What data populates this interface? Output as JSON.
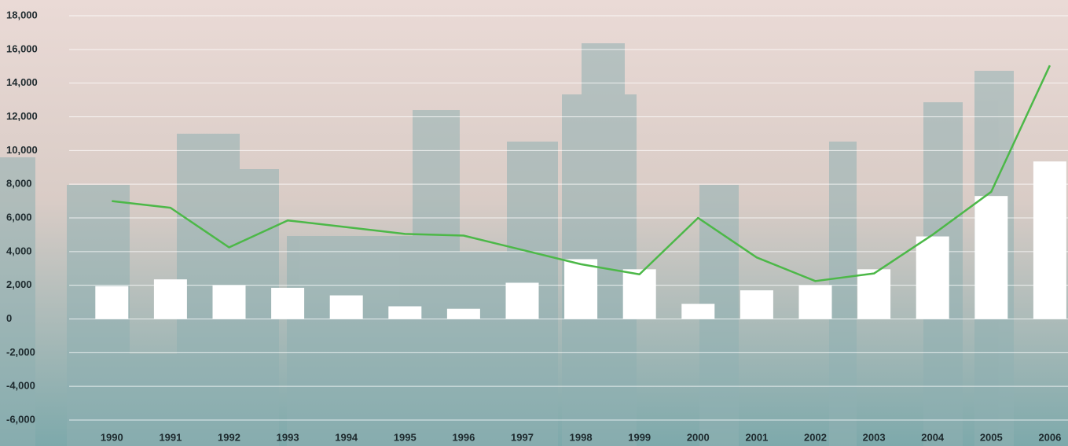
{
  "chart_data": {
    "type": "combo",
    "categories": [
      "1990",
      "1991",
      "1992",
      "1993",
      "1994",
      "1995",
      "1996",
      "1997",
      "1998",
      "1999",
      "2000",
      "2001",
      "2002",
      "2003",
      "2004",
      "2005",
      "2006"
    ],
    "series": [
      {
        "type": "bar",
        "color": "#ffffff",
        "values": [
          1950,
          2350,
          2000,
          1850,
          1400,
          750,
          600,
          2150,
          3550,
          2950,
          900,
          1700,
          2000,
          2950,
          4900,
          7300,
          9350
        ]
      },
      {
        "type": "line",
        "color": "#4cb848",
        "values": [
          7000,
          6600,
          4250,
          5850,
          5450,
          5050,
          4950,
          4100,
          3250,
          2650,
          6000,
          3650,
          2250,
          2700,
          5000,
          7550,
          15050
        ]
      }
    ],
    "ylim": [
      -6000,
      18000
    ],
    "yticks": [
      {
        "value": -6000,
        "label": "-6,000"
      },
      {
        "value": -4000,
        "label": "-4,000"
      },
      {
        "value": -2000,
        "label": "-2,000"
      },
      0,
      {
        "value": 2000,
        "label": "2,000"
      },
      {
        "value": 4000,
        "label": "4,000"
      },
      {
        "value": 6000,
        "label": "6,000"
      },
      {
        "value": 8000,
        "label": "8,000"
      },
      {
        "value": 10000,
        "label": "10,000"
      },
      {
        "value": 12000,
        "label": "12,000"
      },
      {
        "value": 14000,
        "label": "14,000"
      },
      {
        "value": 16000,
        "label": "16,000"
      },
      {
        "value": 18000,
        "label": "18,000"
      }
    ],
    "grid": true
  }
}
